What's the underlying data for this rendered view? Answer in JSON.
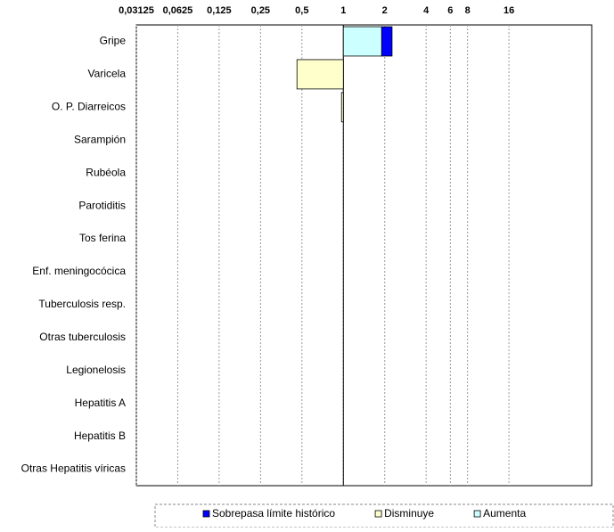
{
  "chart_data": {
    "type": "bar",
    "orientation": "horizontal",
    "log_base": 2,
    "base_value": 1,
    "categories": [
      "Gripe",
      "Varicela",
      "O. P. Diarreicos",
      "Sarampión",
      "Rubéola",
      "Parotiditis",
      "Tos ferina",
      "Enf. meningocócica",
      "Tuberculosis resp.",
      "Otras tuberculosis",
      "Legionelosis",
      "Hepatitis A",
      "Hepatitis B",
      "Otras Hepatitis víricas"
    ],
    "series": [
      {
        "name": "Aumenta",
        "color": "#ccffff",
        "values": [
          1.9,
          null,
          null,
          null,
          null,
          null,
          null,
          null,
          null,
          null,
          null,
          null,
          null,
          null
        ]
      },
      {
        "name": "Disminuye",
        "color": "#ffffcc",
        "values": [
          null,
          0.46,
          0.97,
          null,
          null,
          null,
          null,
          null,
          null,
          null,
          null,
          null,
          null,
          null
        ]
      },
      {
        "name": "Sobrepasa límite histórico",
        "color": "#0000ff",
        "values": [
          1.19,
          null,
          null,
          null,
          null,
          null,
          null,
          null,
          null,
          null,
          null,
          null,
          null,
          null
        ]
      }
    ],
    "legend_order": [
      2,
      1,
      0
    ],
    "xlim": [
      0.03125,
      64
    ],
    "xticks": [
      {
        "value": 0.03125,
        "label": "0,03125"
      },
      {
        "value": 0.0625,
        "label": "0,0625"
      },
      {
        "value": 0.125,
        "label": "0,125"
      },
      {
        "value": 0.25,
        "label": "0,25"
      },
      {
        "value": 0.5,
        "label": "0,5"
      },
      1,
      2,
      4,
      6,
      8,
      16
    ],
    "grid": true
  }
}
